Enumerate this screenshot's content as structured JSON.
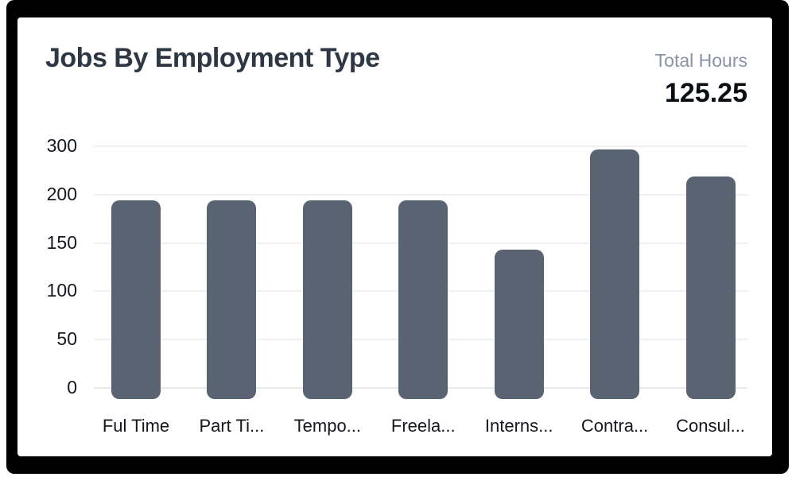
{
  "card": {
    "title": "Jobs By Employment Type",
    "total_hours_label": "Total Hours",
    "total_hours_value": "125.25"
  },
  "colors": {
    "bar": "#5a6371",
    "title_text": "#2e3744",
    "muted_label": "#8a92a8",
    "value_text": "#0b0e13",
    "axis_text": "#15181e",
    "gridline": "#eff1f4",
    "zero_line": "#e7e9ed",
    "frame": "#000000",
    "card_bg": "#ffffff"
  },
  "chart_data": {
    "type": "bar",
    "title": "Jobs By Employment Type",
    "categories": [
      "Ful Time",
      "Part Ti...",
      "Tempo...",
      "Freela...",
      "Interns...",
      "Contra...",
      "Consul..."
    ],
    "values": [
      194,
      194,
      194,
      194,
      143,
      293,
      237
    ],
    "y_ticks": [
      0,
      50,
      100,
      150,
      200,
      300
    ],
    "ylim": [
      0,
      300
    ],
    "xlabel": "",
    "ylabel": "",
    "grid": "horizontal",
    "legend": "none",
    "axis_note": "y ticks rendered at uniform spacing; interval 200-300 occupies one tick step"
  }
}
